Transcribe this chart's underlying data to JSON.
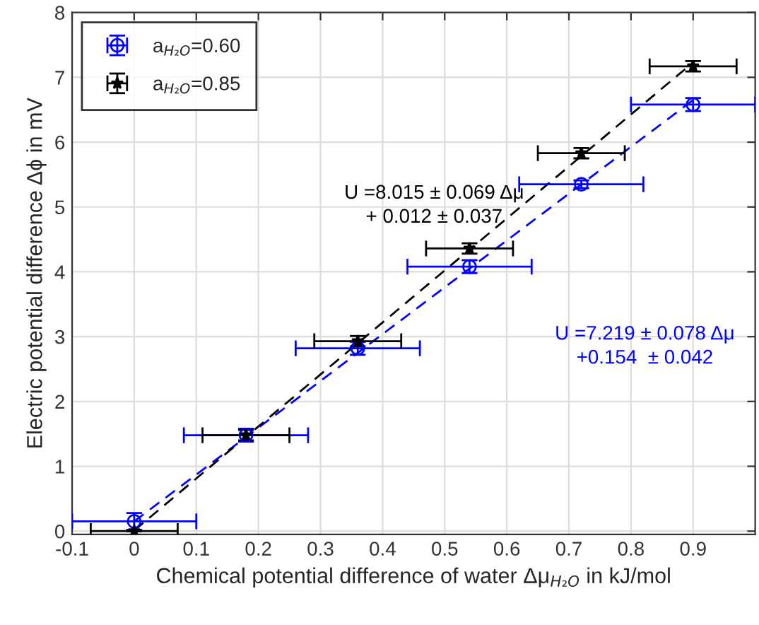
{
  "chart_data": {
    "type": "scatter",
    "xlabel": "Chemical potential difference of water Δμ$_{H₂O}$ in kJ/mol",
    "ylabel": "Electric potential difference Δϕ in mV",
    "xlim": [
      -0.1,
      1.0
    ],
    "xticks": [
      -0.1,
      0,
      0.1,
      0.2,
      0.3,
      0.4,
      0.5,
      0.6,
      0.7,
      0.8,
      0.9
    ],
    "ylim": [
      -0.05,
      8
    ],
    "yticks": [
      0,
      1,
      2,
      3,
      4,
      5,
      6,
      7,
      8
    ],
    "grid": true,
    "legend": "top left",
    "series": [
      {
        "name": "a$_{H₂O}$=0.60",
        "color": "#0000ff",
        "marker": "circle",
        "x": [
          0,
          0.18,
          0.36,
          0.54,
          0.72,
          0.9
        ],
        "values": [
          0.15,
          1.48,
          2.82,
          4.08,
          5.35,
          6.58
        ],
        "errors": [
          0.13,
          0.1,
          0.1,
          0.1,
          0.06,
          0.1
        ],
        "xerrors": [
          0.1,
          0.1,
          0.1,
          0.1,
          0.1,
          0.1
        ]
      },
      {
        "name": "a$_{H₂O}$=0.85",
        "color": "#000000",
        "marker": "star",
        "x": [
          0,
          0.18,
          0.36,
          0.54,
          0.72,
          0.9
        ],
        "values": [
          0.0,
          1.48,
          2.93,
          4.36,
          5.83,
          7.17
        ],
        "errors": [
          null,
          0.08,
          0.08,
          0.08,
          0.08,
          0.08
        ],
        "xerrors": [
          0.07,
          0.07,
          0.07,
          0.07,
          0.07,
          0.07
        ]
      },
      {
        "type": "line",
        "color": "#0000ff",
        "line_style": "dashed",
        "marker": "none",
        "x": [
          0,
          0.9
        ],
        "values": [
          0.15,
          6.65
        ]
      },
      {
        "type": "line",
        "color": "#000000",
        "line_style": "dashed",
        "marker": "none",
        "x": [
          0,
          0.9
        ],
        "values": [
          0.01,
          7.23
        ]
      }
    ],
    "annotations": [
      "U =7.219 ± 0.078 Δμ\n+0.154  ± 0.042",
      "U =8.015 ± 0.069 Δμ\n+ 0.012 ± 0.037"
    ]
  }
}
